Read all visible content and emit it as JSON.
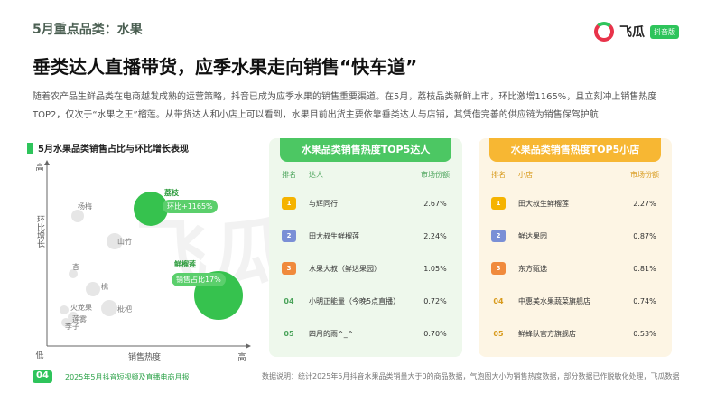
{
  "header": {
    "section": "5月重点品类：水果",
    "title": "垂类达人直播带货，应季水果走向销售“快车道”",
    "logo": "飞瓜",
    "logo_badge": "抖音版"
  },
  "intro": "随着农产品生鲜品类在电商越发成熟的运营策略，抖音已成为应季水果的销售重要渠道。在5月，荔枝品类新鲜上市，环比激增1165%，且立刻冲上销售热度TOP2，仅次于“水果之王”榴莲。从带货达人和小店上可以看到，水果目前出货主要依靠垂类达人与店铺，其凭借完善的供应链为销售保驾护航",
  "chart": {
    "title": "5月水果品类销售占比与环比增长表现",
    "y_high": "高",
    "y_label": "环比增长",
    "y_low": "低",
    "x_label": "销售热度",
    "x_high": "高",
    "bubbles": [
      "杨梅",
      "山竹",
      "杏",
      "桃",
      "火龙果",
      "李子",
      "莲雾",
      "枇杷"
    ],
    "lychee": {
      "name": "荔枝",
      "tag": "环比+1165%"
    },
    "durian": {
      "name": "鲜榴莲",
      "tag": "销售占比17%"
    }
  },
  "influencers": {
    "title": "水果品类销售热度TOP5达人",
    "headers": [
      "排名",
      "达人",
      "市场份额"
    ],
    "rows": [
      [
        "1",
        "与辉同行",
        "2.67%"
      ],
      [
        "2",
        "田大叔生鲜榴莲",
        "2.24%"
      ],
      [
        "3",
        "水果大叔（鲜达果园）",
        "1.05%"
      ],
      [
        "04",
        "小明正能量（今晚5点直播）",
        "0.72%"
      ],
      [
        "05",
        "四月的雨^_^",
        "0.70%"
      ]
    ]
  },
  "shops": {
    "title": "水果品类销售热度TOP5小店",
    "headers": [
      "排名",
      "小店",
      "市场份额"
    ],
    "rows": [
      [
        "1",
        "田大叔生鲜榴莲",
        "2.27%"
      ],
      [
        "2",
        "鲜达果园",
        "0.87%"
      ],
      [
        "3",
        "东方甄选",
        "0.81%"
      ],
      [
        "04",
        "中惠美水果蔬菜旗舰店",
        "0.74%"
      ],
      [
        "05",
        "鲜蜂队官方旗舰店",
        "0.53%"
      ]
    ]
  },
  "footer": {
    "page": "04",
    "report": "2025年5月抖音短视频及直播电商月报",
    "note": "数据说明：统计2025年5月抖音水果品类销量大于0的商品数据，气泡图大小为销售热度数据，部分数据已作脱敏化处理，飞瓜数据"
  },
  "watermark": "飞瓜数据"
}
